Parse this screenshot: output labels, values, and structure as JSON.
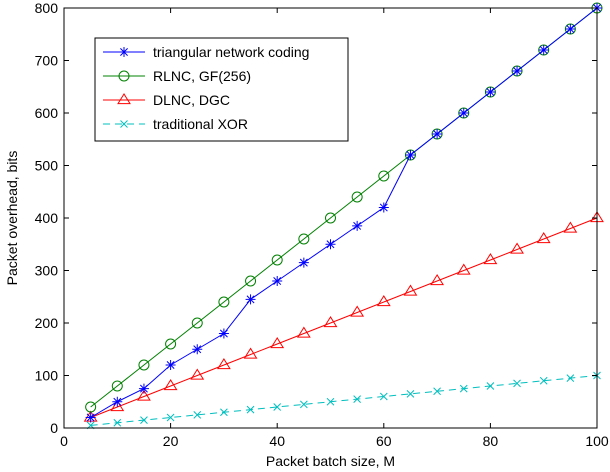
{
  "chart_data": {
    "type": "line",
    "xlabel": "Packet batch size, M",
    "ylabel": "Packet overhead, bits",
    "xlim": [
      0,
      100
    ],
    "ylim": [
      0,
      800
    ],
    "x_ticks": [
      0,
      20,
      40,
      60,
      80,
      100
    ],
    "y_ticks": [
      0,
      100,
      200,
      300,
      400,
      500,
      600,
      700,
      800
    ],
    "grid": false,
    "legend_position": "top-left",
    "x": [
      5,
      10,
      15,
      20,
      25,
      30,
      35,
      40,
      45,
      50,
      55,
      60,
      65,
      70,
      75,
      80,
      85,
      90,
      95,
      100
    ],
    "series": [
      {
        "name": "triangular network coding",
        "color": "#0000ff",
        "marker": "star",
        "line_style": "solid",
        "values": [
          20,
          50,
          75,
          120,
          150,
          180,
          245,
          280,
          315,
          350,
          385,
          420,
          520,
          560,
          600,
          640,
          680,
          720,
          760,
          800
        ]
      },
      {
        "name": "RLNC, GF(256)",
        "color": "#008000",
        "marker": "circle",
        "line_style": "solid",
        "values": [
          40,
          80,
          120,
          160,
          200,
          240,
          280,
          320,
          360,
          400,
          440,
          480,
          520,
          560,
          600,
          640,
          680,
          720,
          760,
          800
        ]
      },
      {
        "name": "DLNC, DGC",
        "color": "#ff0000",
        "marker": "triangle",
        "line_style": "solid",
        "values": [
          20,
          40,
          60,
          80,
          100,
          120,
          140,
          160,
          180,
          200,
          220,
          240,
          260,
          280,
          300,
          320,
          340,
          360,
          380,
          400
        ]
      },
      {
        "name": "traditional XOR",
        "color": "#00bfbf",
        "marker": "x",
        "line_style": "dashed",
        "values": [
          5,
          10,
          15,
          20,
          25,
          30,
          35,
          40,
          45,
          50,
          55,
          60,
          65,
          70,
          75,
          80,
          85,
          90,
          95,
          100
        ]
      }
    ]
  }
}
